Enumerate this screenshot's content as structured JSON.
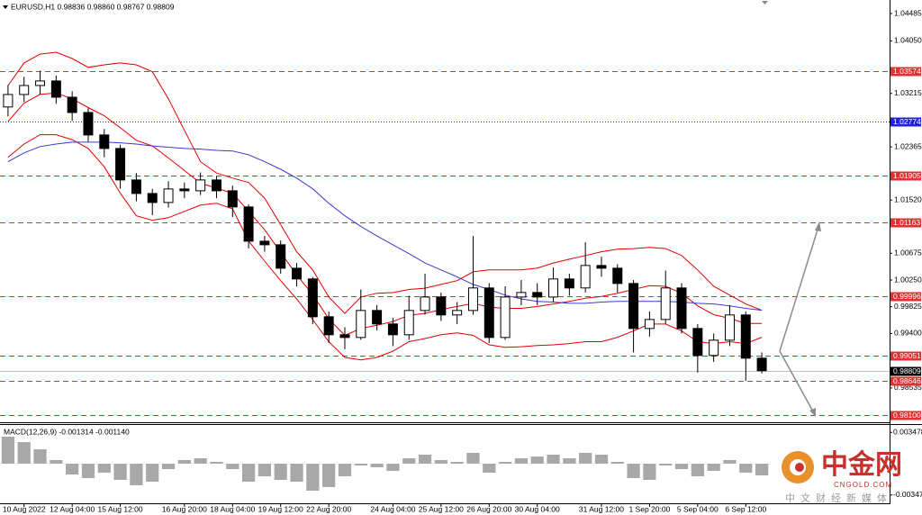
{
  "chart_data": [
    {
      "type": "candlestick",
      "title": "EURUSD,H1  0.98836 0.98860 0.98767 0.98809",
      "categories": [
        null,
        "10 Aug 2022",
        null,
        null,
        "12 Aug 04:00",
        null,
        null,
        "15 Aug 12:00",
        null,
        null,
        null,
        "16 Aug 20:00",
        null,
        null,
        "18 Aug 04:00",
        null,
        null,
        "19 Aug 12:00",
        null,
        null,
        "22 Aug 20:00",
        null,
        null,
        null,
        "24 Aug 04:00",
        null,
        null,
        "25 Aug 12:00",
        null,
        null,
        "26 Aug 20:00",
        null,
        null,
        "30 Aug 04:00",
        null,
        null,
        null,
        "31 Aug 12:00",
        null,
        null,
        "1 Sep 20:00",
        null,
        null,
        "5 Sep 04:00",
        null,
        null,
        "6 Sep 12:00",
        null
      ],
      "open": [
        1.03,
        1.03198,
        1.03341,
        1.03413,
        1.03155,
        1.02912,
        1.02555,
        1.0234,
        1.0184,
        1.01625,
        1.01482,
        1.01697,
        1.01668,
        1.0184,
        1.01668,
        1.01411,
        1.00867,
        1.0081,
        1.00438,
        1.00267,
        0.99666,
        0.9938,
        0.99337,
        0.99766,
        0.99552,
        0.9938,
        0.99766,
        0.9998,
        0.99695,
        0.99766,
        1.00124,
        0.99337,
        0.9998,
        1.00052,
        0.9998,
        1.00267,
        1.00124,
        1.00481,
        1.00438,
        1.00195,
        0.9948,
        0.99623,
        1.00124,
        0.9948,
        0.99051,
        0.99294,
        0.99695,
        0.99008
      ],
      "high": [
        1.0335,
        1.0348,
        1.03574,
        1.035,
        1.0325,
        1.0298,
        1.0265,
        1.024,
        1.0195,
        1.017,
        1.0182,
        1.018,
        1.0196,
        1.019,
        1.0175,
        1.0145,
        1.0095,
        1.0088,
        1.0052,
        1.003,
        0.9975,
        0.995,
        1.001,
        0.9985,
        0.9965,
        1.0,
        1.0035,
        1.0005,
        0.999,
        1.0095,
        1.002,
        1.0015,
        1.0025,
        1.002,
        1.0045,
        1.0035,
        1.0085,
        1.0062,
        1.005,
        1.0025,
        0.9975,
        1.004,
        1.002,
        0.9955,
        0.994,
        0.9985,
        0.9975,
        0.991
      ],
      "low": [
        1.0285,
        1.0308,
        1.032,
        1.0305,
        1.0278,
        1.0245,
        1.022,
        1.017,
        1.015,
        1.0128,
        1.014,
        1.0155,
        1.016,
        1.0155,
        1.0125,
        1.0075,
        1.007,
        1.0035,
        1.0015,
        0.9955,
        0.9925,
        0.9915,
        0.993,
        0.9945,
        0.992,
        0.993,
        0.997,
        0.996,
        0.9955,
        0.997,
        0.9925,
        0.993,
        0.9985,
        0.9985,
        0.999,
        1.0,
        1.0005,
        1.003,
        1.0005,
        0.991,
        0.9935,
        0.9955,
        0.994,
        0.9878,
        0.9895,
        0.992,
        0.98646,
        0.98767
      ],
      "close": [
        1.03198,
        1.03341,
        1.03413,
        1.03155,
        1.02912,
        1.02555,
        1.0234,
        1.0184,
        1.01625,
        1.01482,
        1.01697,
        1.01668,
        1.0184,
        1.01668,
        1.01411,
        1.00867,
        1.0081,
        1.00438,
        1.00267,
        0.99666,
        0.9938,
        0.99337,
        0.99766,
        0.99552,
        0.9938,
        0.99766,
        0.9998,
        0.99695,
        0.99766,
        1.00124,
        0.99337,
        0.9998,
        1.00052,
        0.9998,
        1.00267,
        1.00124,
        1.00481,
        1.00438,
        1.00195,
        0.9948,
        0.99623,
        1.00124,
        0.9948,
        0.99051,
        0.99294,
        0.99695,
        0.99008,
        0.98809
      ],
      "up_color": "#ffffff",
      "down_color": "#000000",
      "lines": [
        {
          "color": "#e00000",
          "values": [
            1.0334,
            1.037,
            1.0384,
            1.0387,
            1.0377,
            1.0363,
            1.0367,
            1.037,
            1.0367,
            1.0356,
            1.0313,
            1.0263,
            1.0213,
            1.0195,
            1.0187,
            1.018,
            1.0155,
            1.0113,
            1.007,
            1.0041,
            0.9998,
            0.9972,
            0.9998,
            1.0004,
            1.0005,
            1.001,
            1.0012,
            1.0018,
            1.0024,
            1.0038,
            1.0041,
            1.0041,
            1.0041,
            1.0044,
            1.0052,
            1.0058,
            1.0064,
            1.007,
            1.0074,
            1.0075,
            1.0077,
            1.0075,
            1.0064,
            1.0041,
            1.0015,
            1.0001,
            0.9987,
            0.9977
          ]
        },
        {
          "color": "#e00000",
          "values": [
            1.0277,
            1.0306,
            1.032,
            1.0322,
            1.0313,
            1.0299,
            1.0286,
            1.0267,
            1.0247,
            1.0238,
            1.0219,
            1.0199,
            1.0179,
            1.0171,
            1.0163,
            1.0134,
            1.0105,
            1.0069,
            1.0033,
            1.0002,
            0.9963,
            0.9937,
            0.9948,
            0.9953,
            0.9959,
            0.9969,
            0.9972,
            0.9978,
            0.9983,
            0.9988,
            0.9982,
            0.998,
            0.998,
            0.9983,
            0.9987,
            0.9991,
            0.9996,
            0.9999,
            1.0004,
            1.001,
            1.0016,
            1.0015,
            1.0004,
            0.9984,
            0.997,
            0.9964,
            0.9956,
            0.9956
          ]
        },
        {
          "color": "#e00000",
          "values": [
            1.022,
            1.0241,
            1.0256,
            1.0256,
            1.0248,
            1.0234,
            1.0205,
            1.0163,
            1.0127,
            1.012,
            1.0124,
            1.0134,
            1.0144,
            1.0147,
            1.0138,
            1.0087,
            1.0055,
            1.0024,
            0.9995,
            0.9962,
            0.9927,
            0.9902,
            0.9898,
            0.9902,
            0.9912,
            0.9927,
            0.9932,
            0.9938,
            0.9941,
            0.9937,
            0.9922,
            0.9918,
            0.9919,
            0.9921,
            0.9922,
            0.9924,
            0.9927,
            0.9927,
            0.9934,
            0.9944,
            0.9955,
            0.9955,
            0.9944,
            0.9927,
            0.9924,
            0.9927,
            0.9924,
            0.9934
          ]
        },
        {
          "color": "#3a3ad0",
          "values": [
            1.0213,
            1.0227,
            1.0237,
            1.0241,
            1.0244,
            1.0244,
            1.0244,
            1.0243,
            1.0241,
            1.0238,
            1.0236,
            1.0234,
            1.0233,
            1.0231,
            1.023,
            1.0224,
            1.0213,
            1.0201,
            1.0187,
            1.017,
            1.0147,
            1.0127,
            1.011,
            1.0095,
            1.0081,
            1.0067,
            1.0052,
            1.0041,
            1.003,
            1.0018,
            1.001,
            1.0001,
            0.9995,
            0.9991,
            0.999,
            0.9988,
            0.9988,
            0.999,
            0.9991,
            0.9991,
            0.9991,
            0.9991,
            0.999,
            0.9988,
            0.9987,
            0.9984,
            0.998,
            0.9977
          ]
        }
      ],
      "levels": [
        1.03574,
        1.02774,
        1.01905,
        1.01163,
        0.99996,
        0.99051,
        0.98646,
        {
          "value": 0.981,
          "label": "0.98100"
        }
      ],
      "level_colors": [
        "#e03030",
        "#2020e0",
        "#e03030",
        "#e03030",
        "#e03030",
        "#e03030",
        "#e03030",
        "#e03030"
      ],
      "level_styles": [
        "dashed",
        "dotted",
        "dashed",
        "dashed",
        "dashed",
        "dashed",
        "dashed",
        "dashed"
      ],
      "ylim": [
        0.98004,
        1.04671
      ],
      "yticks": [
        1.04485,
        {
          "value": 1.0405,
          "label": "1.04050"
        },
        1.03215,
        1.02365,
        {
          "value": 1.0152,
          "label": "1.01520"
        },
        1.00675,
        {
          "value": 1.0025,
          "label": "1.00250"
        },
        0.99825,
        {
          "value": 0.994,
          "label": "0.99400"
        },
        0.98535
      ]
    },
    {
      "type": "histogram-panel",
      "title": "MACD(12,26,9) -0.001314 -0.001140",
      "values": [
        0.003,
        0.0024,
        0.0016,
        0.0004,
        -0.0012,
        -0.0016,
        -0.001,
        -0.0018,
        -0.0024,
        -0.002,
        -0.0006,
        0.0004,
        0.0006,
        0.0002,
        -0.0006,
        -0.002,
        -0.0014,
        -0.0018,
        -0.002,
        -0.003,
        -0.0026,
        -0.0014,
        -0.0002,
        -0.0004,
        -0.0008,
        0.0006,
        0.001,
        0.0004,
        0.0002,
        0.0012,
        -0.001,
        0.0002,
        0.0006,
        0.0008,
        0.001,
        0.0006,
        0.0012,
        0.001,
        0.0002,
        -0.0016,
        -0.0018,
        -0.0002,
        -0.0006,
        -0.0014,
        -0.0008,
        0.0004,
        -0.001,
        -0.0013
      ],
      "color": "#a8a8a8",
      "ylim": [
        -0.0042,
        0.0042
      ],
      "yticks": [
        0.003478,
        -0.003478
      ]
    }
  ],
  "watermark": {
    "title": "中金网",
    "site": "CNGOLD.COM",
    "tagline": "中文财经新媒体"
  }
}
